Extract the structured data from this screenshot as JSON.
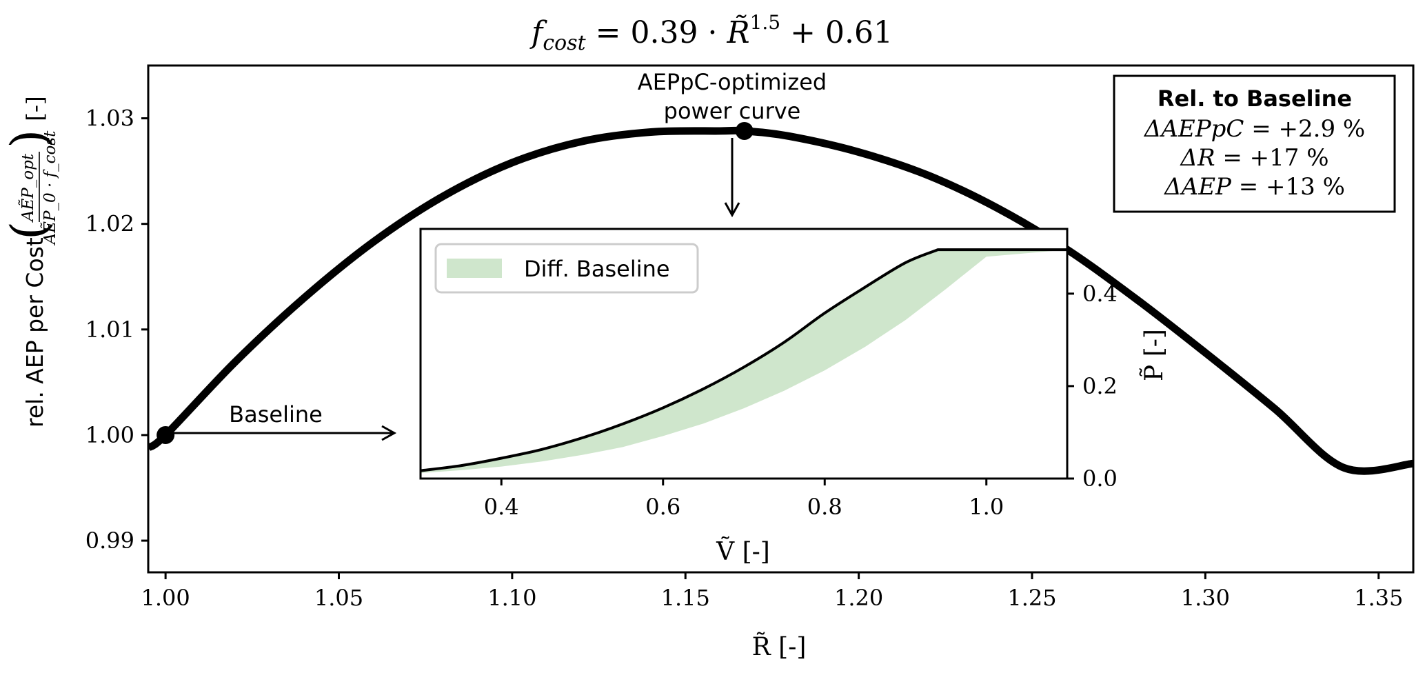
{
  "chart_data": [
    {
      "type": "line",
      "title": "f_cost = 0.39 · R̃^1.5 + 0.61",
      "title_parts": {
        "lhs_symbol": "f",
        "lhs_sub": "cost",
        "rhs_text": " = 0.39 · ",
        "rhs_symbol": "R̃",
        "exponent": "1.5",
        "tail": " + 0.61"
      },
      "xlabel": "R̃ [-]",
      "ylabel_text": "rel. AEP per Cost",
      "ylabel_fraction_numerator": "AẼP_opt",
      "ylabel_fraction_denominator": "AẼP_0 · f_cost",
      "ylabel_unit": "[-]",
      "xlim": [
        0.995,
        1.36
      ],
      "ylim": [
        0.987,
        1.035
      ],
      "xticks": [
        "1.00",
        "1.05",
        "1.10",
        "1.15",
        "1.20",
        "1.25",
        "1.30",
        "1.35"
      ],
      "yticks": [
        "0.99",
        "1.00",
        "1.01",
        "1.02",
        "1.03"
      ],
      "grid": false,
      "series": [
        {
          "x": [
            0.995,
            1.0,
            1.02,
            1.04,
            1.06,
            1.08,
            1.1,
            1.12,
            1.14,
            1.16,
            1.167,
            1.18,
            1.2,
            1.22,
            1.24,
            1.26,
            1.28,
            1.3,
            1.32,
            1.34,
            1.36
          ],
          "y": [
            0.9988,
            1.0,
            1.0069,
            1.013,
            1.0183,
            1.0226,
            1.0258,
            1.0278,
            1.0287,
            1.0288,
            1.0288,
            1.0283,
            1.0268,
            1.0246,
            1.0215,
            1.0176,
            1.0129,
            1.0078,
            1.0025,
            0.9969,
            0.9973
          ]
        }
      ],
      "markers": [
        {
          "x": 1.0,
          "y": 1.0,
          "label": "Baseline"
        },
        {
          "x": 1.167,
          "y": 1.0288,
          "label_line1": "AEPpC-optimized",
          "label_line2": "power curve"
        }
      ],
      "info_box": {
        "title": "Rel. to Baseline",
        "lines": [
          {
            "symbol": "ΔAEPpC",
            "value": " = +2.9 %"
          },
          {
            "symbol": "ΔR",
            "value": " = +17 %"
          },
          {
            "symbol": "ΔAEP",
            "value": " = +13 %"
          }
        ]
      }
    },
    {
      "type": "area",
      "xlabel": "Ṽ [-]",
      "ylabel": "P̃ [-]",
      "xlim": [
        0.3,
        1.1
      ],
      "ylim": [
        0.0,
        0.54
      ],
      "xticks": [
        "0.4",
        "0.6",
        "0.8",
        "1.0"
      ],
      "yticks": [
        "0.0",
        "0.2",
        "0.4"
      ],
      "legend": {
        "position": "top-left",
        "entries": [
          "Diff. Baseline"
        ]
      },
      "legend_color": "#cfe6cc",
      "series": [
        {
          "x": [
            0.3,
            0.35,
            0.4,
            0.45,
            0.5,
            0.55,
            0.6,
            0.65,
            0.7,
            0.75,
            0.8,
            0.85,
            0.9,
            0.94,
            1.1
          ],
          "y": [
            0.017,
            0.028,
            0.044,
            0.063,
            0.088,
            0.118,
            0.153,
            0.194,
            0.241,
            0.295,
            0.358,
            0.414,
            0.467,
            0.495,
            0.495
          ]
        },
        {
          "x": [
            0.3,
            0.35,
            0.4,
            0.45,
            0.5,
            0.55,
            0.6,
            0.65,
            0.7,
            0.75,
            0.8,
            0.85,
            0.9,
            0.95,
            1.0,
            1.1
          ],
          "y": [
            0.012,
            0.018,
            0.026,
            0.037,
            0.051,
            0.068,
            0.092,
            0.119,
            0.152,
            0.19,
            0.234,
            0.285,
            0.343,
            0.41,
            0.48,
            0.495
          ]
        }
      ]
    }
  ]
}
